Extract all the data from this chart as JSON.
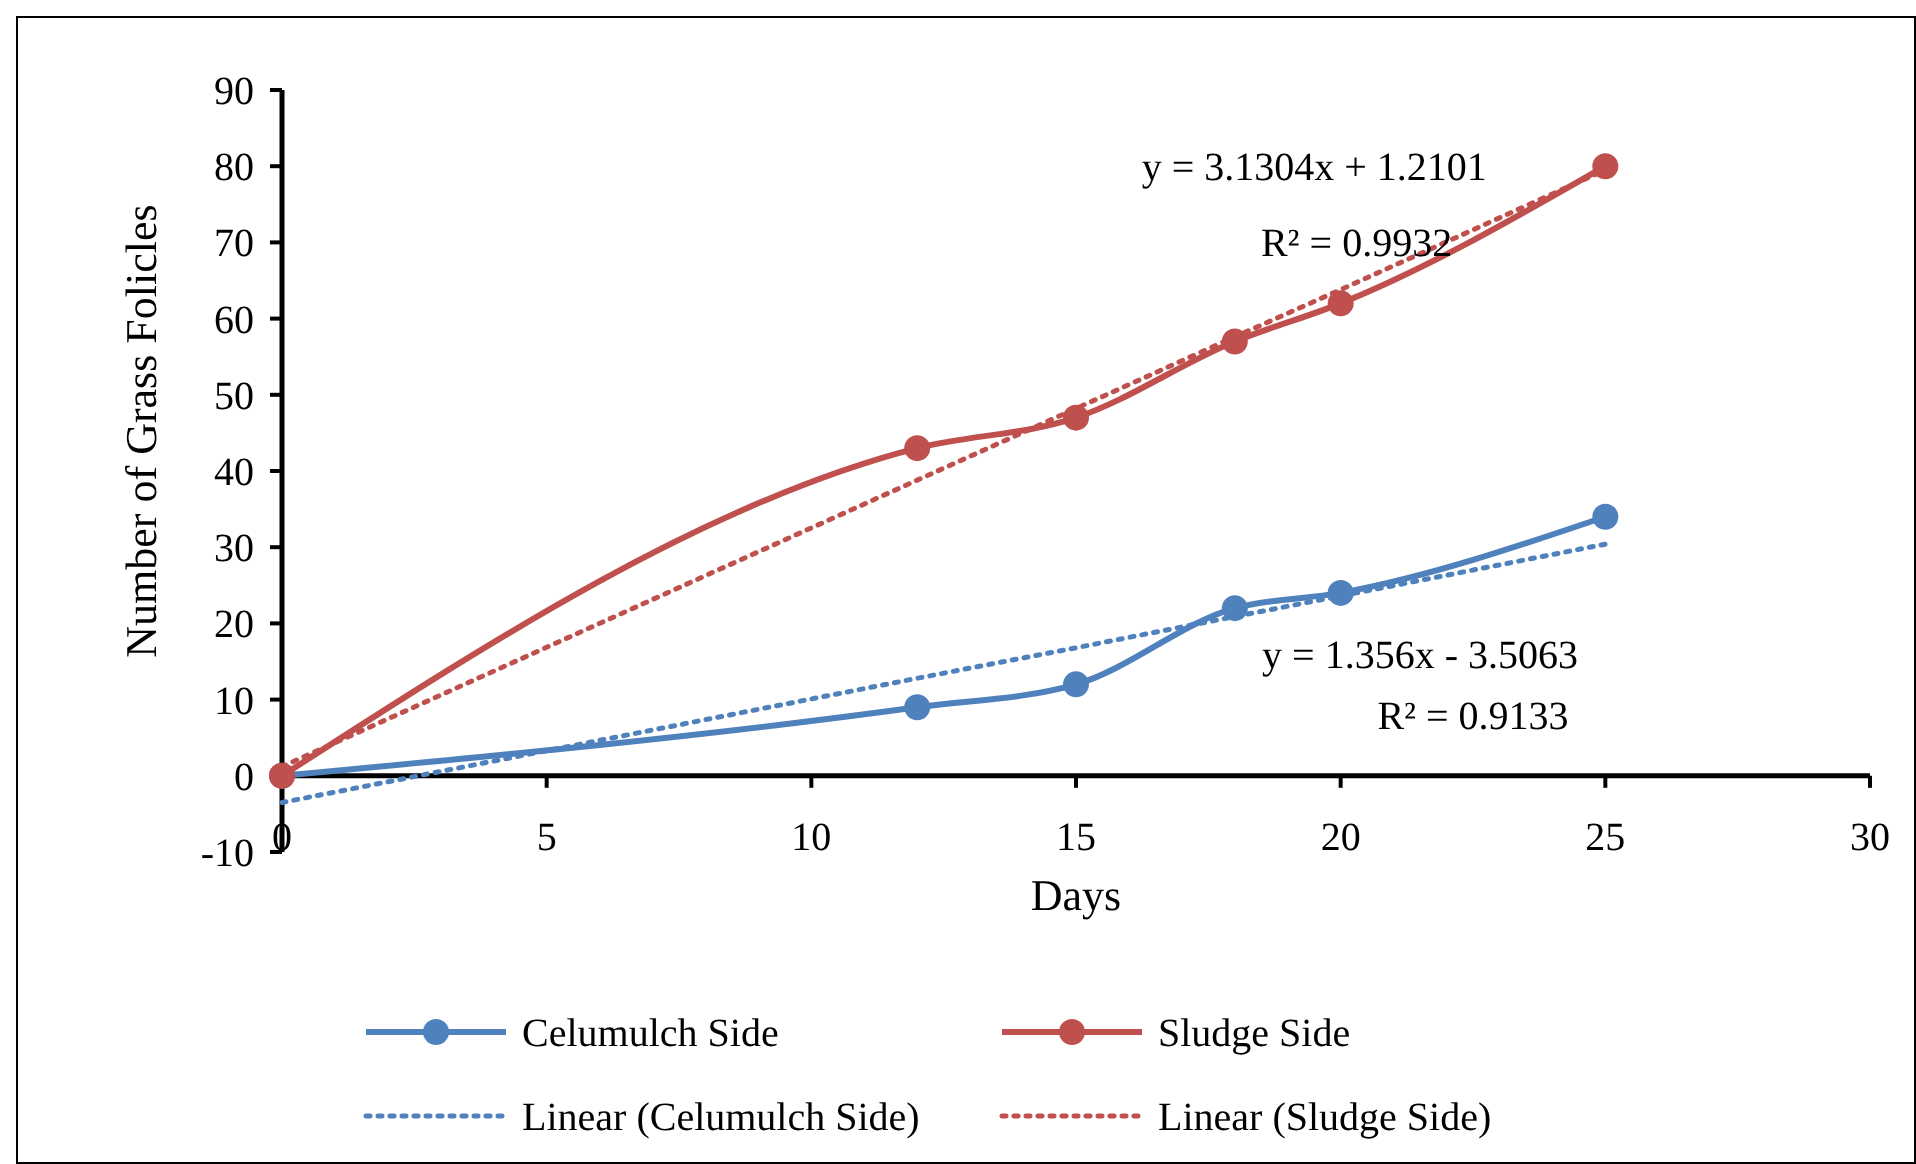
{
  "chart_data": {
    "type": "line",
    "xlabel": "Days",
    "ylabel": "Number of Grass Folicles",
    "x": [
      0,
      12,
      15,
      18,
      20,
      25
    ],
    "xlim": [
      0,
      30
    ],
    "xticks": [
      0,
      5,
      10,
      15,
      20,
      25,
      30
    ],
    "ylim": [
      -10,
      90
    ],
    "yticks": [
      -10,
      0,
      10,
      20,
      30,
      40,
      50,
      60,
      70,
      80,
      90
    ],
    "grid": false,
    "legend": "bottom",
    "marker": "circle",
    "line_style": "solid",
    "series": [
      {
        "name": "Celumulch Side",
        "color": "#4f81bd",
        "values": [
          0,
          9,
          12,
          22,
          24,
          34
        ]
      },
      {
        "name": "Sludge Side",
        "color": "#c0504d",
        "values": [
          0,
          43,
          47,
          57,
          62,
          80
        ]
      },
      {
        "name": "Linear (Celumulch Side)",
        "type": "line",
        "color": "#4f81bd",
        "values": [
          -3.5,
          12.8,
          16.8,
          20.9,
          23.6,
          30.4
        ],
        "marker": "none",
        "line_style": "dotted"
      },
      {
        "name": "Linear (Sludge Side)",
        "type": "line",
        "color": "#c0504d",
        "values": [
          1.2,
          38.8,
          48.2,
          57.6,
          63.8,
          79.5
        ],
        "marker": "none",
        "line_style": "dotted"
      }
    ],
    "annotations": [
      "y = 3.1304x + 1.2101",
      "R² = 0.9932",
      "y = 1.356x - 3.5063",
      "R² = 0.9133"
    ]
  }
}
